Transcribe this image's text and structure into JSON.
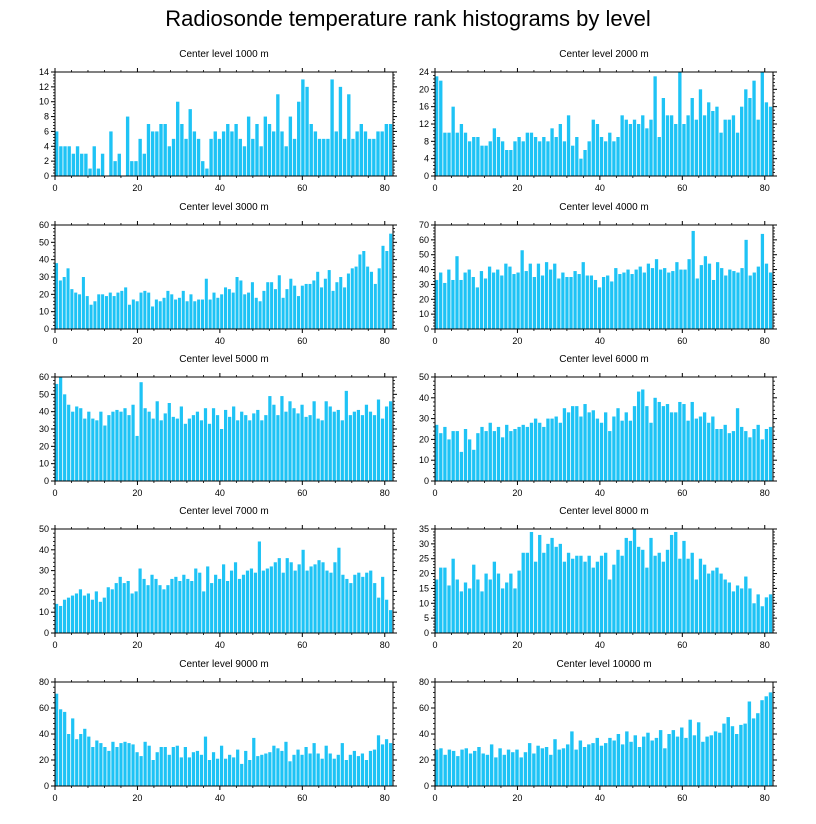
{
  "title": "Radiosonde temperature rank histograms by level",
  "colors": {
    "bar": "#1ec3f5",
    "axis": "#000000",
    "background": "#ffffff"
  },
  "chart_data": [
    {
      "type": "bar",
      "title": "Center level 1000 m",
      "xlim": [
        0,
        82
      ],
      "xticks": [
        0,
        20,
        40,
        60,
        80
      ],
      "ylim": [
        0,
        14
      ],
      "yticks": [
        0,
        2,
        4,
        6,
        8,
        10,
        12,
        14
      ],
      "values": [
        6,
        4,
        4,
        4,
        3,
        4,
        3,
        3,
        1,
        4,
        1,
        3,
        0,
        6,
        2,
        3,
        0,
        8,
        2,
        2,
        5,
        3,
        7,
        6,
        6,
        7,
        7,
        4,
        5,
        10,
        7,
        5,
        9,
        6,
        5,
        2,
        1,
        5,
        6,
        5,
        6,
        7,
        6,
        7,
        5,
        4,
        8,
        5,
        7,
        4,
        8,
        7,
        6,
        11,
        6,
        4,
        8,
        5,
        10,
        13,
        12,
        7,
        6,
        5,
        5,
        5,
        13,
        6,
        12,
        5,
        11,
        5,
        6,
        7,
        6,
        5,
        5,
        6,
        6,
        7,
        7
      ]
    },
    {
      "type": "bar",
      "title": "Center level 2000 m",
      "xlim": [
        0,
        82
      ],
      "xticks": [
        0,
        20,
        40,
        60,
        80
      ],
      "ylim": [
        0,
        24
      ],
      "yticks": [
        0,
        4,
        8,
        12,
        16,
        20,
        24
      ],
      "values": [
        23,
        22,
        10,
        10,
        16,
        10,
        12,
        10,
        8,
        9,
        9,
        7,
        7,
        8,
        11,
        9,
        8,
        6,
        6,
        8,
        9,
        8,
        10,
        10,
        9,
        8,
        9,
        8,
        11,
        9,
        12,
        8,
        14,
        7,
        9,
        4,
        6,
        8,
        13,
        12,
        9,
        8,
        10,
        8,
        9,
        14,
        13,
        12,
        13,
        12,
        14,
        11,
        13,
        23,
        9,
        18,
        14,
        14,
        12,
        24,
        12,
        14,
        18,
        13,
        20,
        14,
        17,
        15,
        16,
        10,
        13,
        13,
        14,
        10,
        16,
        20,
        18,
        22,
        13,
        24,
        17,
        16
      ]
    },
    {
      "type": "bar",
      "title": "Center level 3000 m",
      "xlim": [
        0,
        82
      ],
      "xticks": [
        0,
        20,
        40,
        60,
        80
      ],
      "ylim": [
        0,
        60
      ],
      "yticks": [
        0,
        10,
        20,
        30,
        40,
        50,
        60
      ],
      "values": [
        38,
        28,
        30,
        35,
        23,
        21,
        20,
        30,
        19,
        14,
        16,
        20,
        20,
        19,
        21,
        19,
        21,
        22,
        24,
        14,
        17,
        16,
        21,
        22,
        21,
        13,
        17,
        16,
        18,
        22,
        20,
        17,
        18,
        22,
        16,
        20,
        16,
        17,
        17,
        29,
        17,
        21,
        18,
        20,
        24,
        23,
        21,
        30,
        28,
        20,
        21,
        27,
        18,
        16,
        22,
        27,
        27,
        23,
        31,
        18,
        23,
        29,
        25,
        19,
        25,
        26,
        26,
        28,
        33,
        24,
        29,
        34,
        22,
        27,
        30,
        24,
        32,
        35,
        36,
        43,
        45,
        36,
        33,
        26,
        35,
        48,
        45,
        55
      ]
    },
    {
      "type": "bar",
      "title": "Center level 4000 m",
      "xlim": [
        0,
        82
      ],
      "xticks": [
        0,
        20,
        40,
        60,
        80
      ],
      "ylim": [
        0,
        70
      ],
      "yticks": [
        0,
        10,
        20,
        30,
        40,
        50,
        60,
        70
      ],
      "values": [
        33,
        38,
        31,
        40,
        33,
        49,
        33,
        38,
        40,
        35,
        28,
        39,
        34,
        42,
        38,
        40,
        36,
        44,
        42,
        37,
        38,
        53,
        39,
        44,
        35,
        44,
        36,
        45,
        40,
        44,
        34,
        38,
        35,
        35,
        39,
        37,
        45,
        36,
        36,
        33,
        28,
        35,
        36,
        32,
        41,
        37,
        38,
        40,
        37,
        40,
        42,
        38,
        44,
        41,
        47,
        40,
        41,
        38,
        39,
        45,
        40,
        40,
        47,
        66,
        34,
        43,
        49,
        44,
        33,
        45,
        41,
        36,
        40,
        39,
        38,
        41,
        60,
        36,
        38,
        42,
        64,
        44,
        38
      ]
    },
    {
      "type": "bar",
      "title": "Center level 5000 m",
      "xlim": [
        0,
        82
      ],
      "xticks": [
        0,
        20,
        40,
        60,
        80
      ],
      "ylim": [
        0,
        60
      ],
      "yticks": [
        0,
        10,
        20,
        30,
        40,
        50,
        60
      ],
      "values": [
        56,
        60,
        50,
        44,
        40,
        43,
        42,
        36,
        40,
        36,
        35,
        40,
        32,
        38,
        40,
        41,
        40,
        42,
        38,
        44,
        26,
        57,
        42,
        40,
        36,
        46,
        35,
        39,
        45,
        37,
        36,
        43,
        33,
        36,
        38,
        40,
        35,
        42,
        33,
        42,
        38,
        30,
        41,
        37,
        43,
        35,
        40,
        38,
        35,
        39,
        41,
        35,
        38,
        49,
        44,
        38,
        49,
        40,
        46,
        42,
        39,
        44,
        37,
        38,
        46,
        36,
        35,
        46,
        43,
        40,
        41,
        35,
        52,
        38,
        40,
        41,
        38,
        44,
        40,
        38,
        47,
        36,
        43,
        46
      ]
    },
    {
      "type": "bar",
      "title": "Center level 6000 m",
      "xlim": [
        0,
        82
      ],
      "xticks": [
        0,
        20,
        40,
        60,
        80
      ],
      "ylim": [
        0,
        50
      ],
      "yticks": [
        0,
        10,
        20,
        30,
        40,
        50
      ],
      "values": [
        27,
        23,
        26,
        20,
        24,
        24,
        14,
        25,
        20,
        15,
        23,
        26,
        24,
        28,
        24,
        26,
        21,
        27,
        24,
        25,
        26,
        27,
        26,
        28,
        30,
        28,
        26,
        30,
        30,
        31,
        28,
        35,
        33,
        36,
        36,
        31,
        37,
        33,
        34,
        30,
        28,
        33,
        24,
        31,
        35,
        29,
        33,
        29,
        36,
        43,
        44,
        36,
        28,
        40,
        38,
        36,
        37,
        33,
        33,
        38,
        37,
        29,
        38,
        30,
        31,
        33,
        28,
        31,
        25,
        25,
        27,
        23,
        24,
        35,
        26,
        24,
        21,
        25,
        27,
        20,
        25,
        26
      ]
    },
    {
      "type": "bar",
      "title": "Center level 7000 m",
      "xlim": [
        0,
        82
      ],
      "xticks": [
        0,
        20,
        40,
        60,
        80
      ],
      "ylim": [
        0,
        50
      ],
      "yticks": [
        0,
        10,
        20,
        30,
        40,
        50
      ],
      "values": [
        14,
        13,
        16,
        17,
        18,
        19,
        21,
        18,
        19,
        16,
        20,
        15,
        17,
        22,
        21,
        24,
        27,
        24,
        25,
        19,
        20,
        31,
        26,
        23,
        28,
        26,
        23,
        21,
        23,
        26,
        27,
        25,
        28,
        26,
        25,
        31,
        29,
        20,
        32,
        24,
        28,
        26,
        33,
        25,
        30,
        34,
        26,
        28,
        30,
        31,
        29,
        44,
        30,
        31,
        32,
        34,
        36,
        29,
        36,
        34,
        30,
        33,
        40,
        30,
        32,
        33,
        35,
        34,
        30,
        29,
        34,
        41,
        28,
        26,
        24,
        28,
        29,
        27,
        29,
        30,
        24,
        17,
        27,
        16,
        11
      ]
    },
    {
      "type": "bar",
      "title": "Center level 8000 m",
      "xlim": [
        0,
        82
      ],
      "xticks": [
        0,
        20,
        40,
        60,
        80
      ],
      "ylim": [
        0,
        35
      ],
      "yticks": [
        0,
        5,
        10,
        15,
        20,
        25,
        30,
        35
      ],
      "values": [
        18,
        22,
        22,
        16,
        25,
        18,
        14,
        17,
        15,
        23,
        18,
        14,
        20,
        18,
        24,
        20,
        15,
        17,
        20,
        15,
        21,
        27,
        27,
        34,
        24,
        33,
        27,
        30,
        32,
        29,
        30,
        24,
        27,
        25,
        26,
        26,
        24,
        26,
        22,
        24,
        26,
        27,
        18,
        23,
        28,
        26,
        32,
        31,
        35,
        29,
        28,
        22,
        32,
        26,
        27,
        24,
        28,
        33,
        34,
        25,
        31,
        25,
        27,
        18,
        25,
        23,
        20,
        21,
        22,
        20,
        18,
        17,
        14,
        16,
        15,
        19,
        15,
        10,
        13,
        9,
        12,
        13
      ]
    },
    {
      "type": "bar",
      "title": "Center level 9000 m",
      "xlim": [
        0,
        82
      ],
      "xticks": [
        0,
        20,
        40,
        60,
        80
      ],
      "ylim": [
        0,
        80
      ],
      "yticks": [
        0,
        20,
        40,
        60,
        80
      ],
      "values": [
        71,
        59,
        57,
        40,
        52,
        36,
        40,
        44,
        38,
        30,
        35,
        33,
        30,
        27,
        34,
        30,
        33,
        34,
        33,
        32,
        26,
        23,
        34,
        31,
        20,
        26,
        30,
        30,
        24,
        30,
        31,
        22,
        30,
        22,
        26,
        27,
        24,
        38,
        20,
        26,
        21,
        31,
        21,
        24,
        22,
        28,
        17,
        27,
        20,
        37,
        23,
        24,
        25,
        26,
        31,
        29,
        27,
        34,
        19,
        24,
        28,
        24,
        30,
        25,
        33,
        25,
        21,
        31,
        25,
        21,
        24,
        33,
        20,
        24,
        27,
        23,
        25,
        20,
        27,
        28,
        39,
        32,
        36,
        33
      ]
    },
    {
      "type": "bar",
      "title": "Center level 10000 m",
      "xlim": [
        0,
        82
      ],
      "xticks": [
        0,
        20,
        40,
        60,
        80
      ],
      "ylim": [
        0,
        80
      ],
      "yticks": [
        0,
        20,
        40,
        60,
        80
      ],
      "values": [
        28,
        29,
        24,
        28,
        27,
        23,
        28,
        29,
        25,
        27,
        30,
        25,
        24,
        32,
        22,
        29,
        24,
        28,
        26,
        28,
        22,
        26,
        33,
        25,
        31,
        29,
        30,
        24,
        36,
        28,
        29,
        32,
        42,
        28,
        35,
        30,
        32,
        33,
        37,
        31,
        33,
        37,
        35,
        40,
        32,
        42,
        34,
        39,
        30,
        38,
        41,
        35,
        37,
        43,
        29,
        40,
        43,
        38,
        45,
        37,
        51,
        39,
        49,
        34,
        38,
        39,
        42,
        41,
        48,
        53,
        46,
        40,
        47,
        48,
        65,
        52,
        56,
        66,
        69,
        72
      ]
    }
  ]
}
